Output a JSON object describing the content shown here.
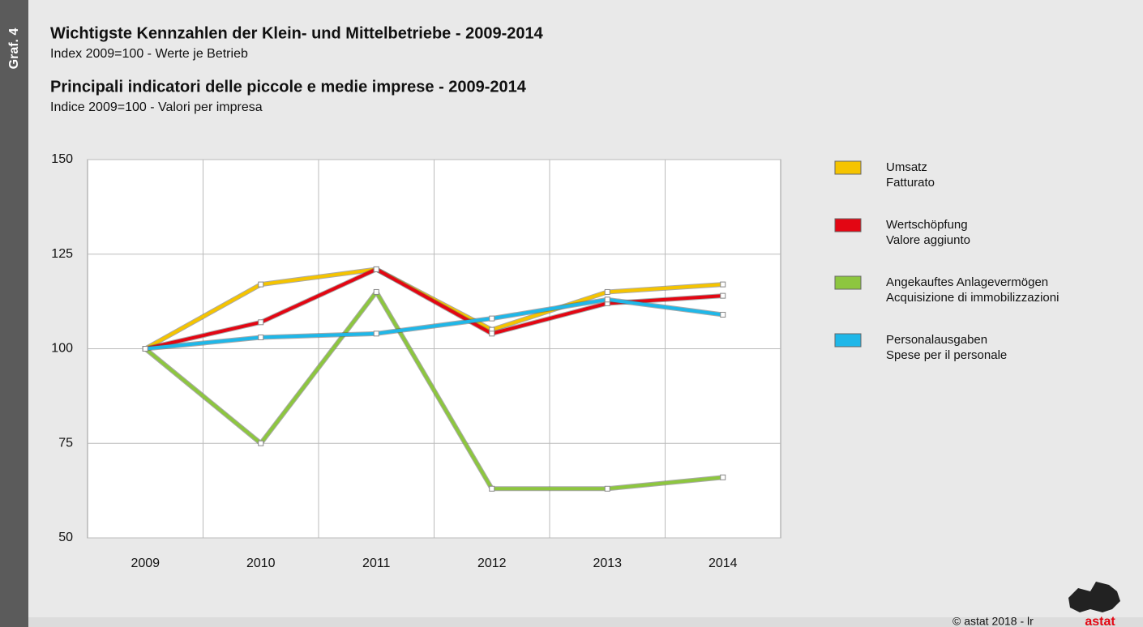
{
  "chart_data": {
    "type": "line",
    "figure_label": "Graf. 4",
    "title": "Wichtigste Kennzahlen der Klein- und Mittelbetriebe - 2009-2014",
    "subtitle": "Index 2009=100 - Werte je Betrieb",
    "title_it": "Principali indicatori delle piccole e medie imprese - 2009-2014",
    "subtitle_it": "Indice 2009=100 - Valori per impresa",
    "categories": [
      "2009",
      "2010",
      "2011",
      "2012",
      "2013",
      "2014"
    ],
    "series": [
      {
        "name": "Umsatz",
        "name_it": "Fatturato",
        "color": "#f5c400",
        "values": [
          100,
          117,
          121,
          105,
          115,
          117
        ]
      },
      {
        "name": "Wertschöpfung",
        "name_it": "Valore aggiunto",
        "color": "#e30613",
        "values": [
          100,
          107,
          121,
          104,
          112,
          114
        ]
      },
      {
        "name": "Angekauftes Anlagevermögen",
        "name_it": "Acquisizione di immobilizzazioni",
        "color": "#8dc63f",
        "values": [
          100,
          75,
          115,
          63,
          63,
          66
        ]
      },
      {
        "name": "Personalausgaben",
        "name_it": "Spese per il personale",
        "color": "#1fb7e8",
        "values": [
          100,
          103,
          104,
          108,
          113,
          109
        ]
      }
    ],
    "ylim": [
      50,
      150
    ],
    "yticks": [
      50,
      75,
      100,
      125,
      150
    ],
    "grid": true,
    "legend": "right",
    "footer": "© astat 2018 - lr",
    "logo": "astat"
  }
}
